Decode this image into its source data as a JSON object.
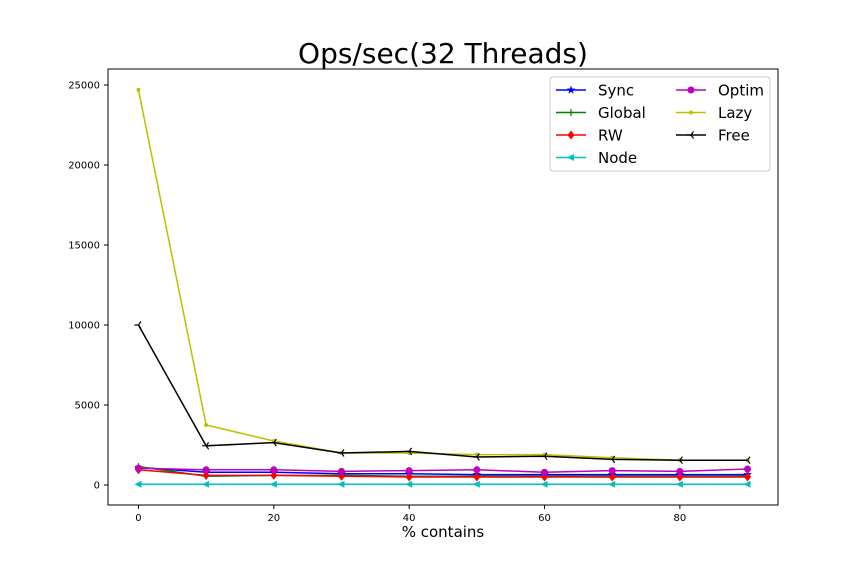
{
  "chart_data": {
    "type": "line",
    "title": "Ops/sec(32 Threads)",
    "xlabel": "% contains",
    "ylabel": "",
    "x": [
      0,
      10,
      20,
      30,
      40,
      50,
      60,
      70,
      80,
      90
    ],
    "xlim": [
      -4.5,
      94.5
    ],
    "ylim": [
      -1250,
      26000
    ],
    "xticks": [
      0,
      20,
      40,
      60,
      80
    ],
    "yticks": [
      0,
      5000,
      10000,
      15000,
      20000,
      25000
    ],
    "grid": false,
    "legend_position": "top-right",
    "legend_columns": 2,
    "series": [
      {
        "name": "Sync",
        "color": "#0000ff",
        "marker": "star",
        "values": [
          1100,
          800,
          800,
          700,
          700,
          650,
          650,
          650,
          650,
          650
        ]
      },
      {
        "name": "Global",
        "color": "#008000",
        "marker": "plus",
        "values": [
          1150,
          550,
          600,
          600,
          550,
          550,
          550,
          550,
          550,
          550
        ]
      },
      {
        "name": "RW",
        "color": "#ff0000",
        "marker": "diamond",
        "values": [
          950,
          600,
          600,
          550,
          500,
          500,
          500,
          500,
          500,
          500
        ]
      },
      {
        "name": "Node",
        "color": "#00bfbf",
        "marker": "triangle-left",
        "values": [
          50,
          50,
          50,
          50,
          50,
          50,
          50,
          50,
          50,
          50
        ]
      },
      {
        "name": "Optim",
        "color": "#bf00bf",
        "marker": "circle",
        "values": [
          1050,
          950,
          950,
          850,
          900,
          950,
          800,
          900,
          850,
          1000
        ]
      },
      {
        "name": "Lazy",
        "color": "#bfbf00",
        "marker": "dot",
        "values": [
          24700,
          3750,
          2750,
          2000,
          2000,
          1900,
          1900,
          1700,
          1550,
          1550
        ]
      },
      {
        "name": "Free",
        "color": "#000000",
        "marker": "tri-left",
        "values": [
          10000,
          2450,
          2650,
          2000,
          2100,
          1750,
          1800,
          1600,
          1550,
          1550
        ]
      }
    ]
  }
}
